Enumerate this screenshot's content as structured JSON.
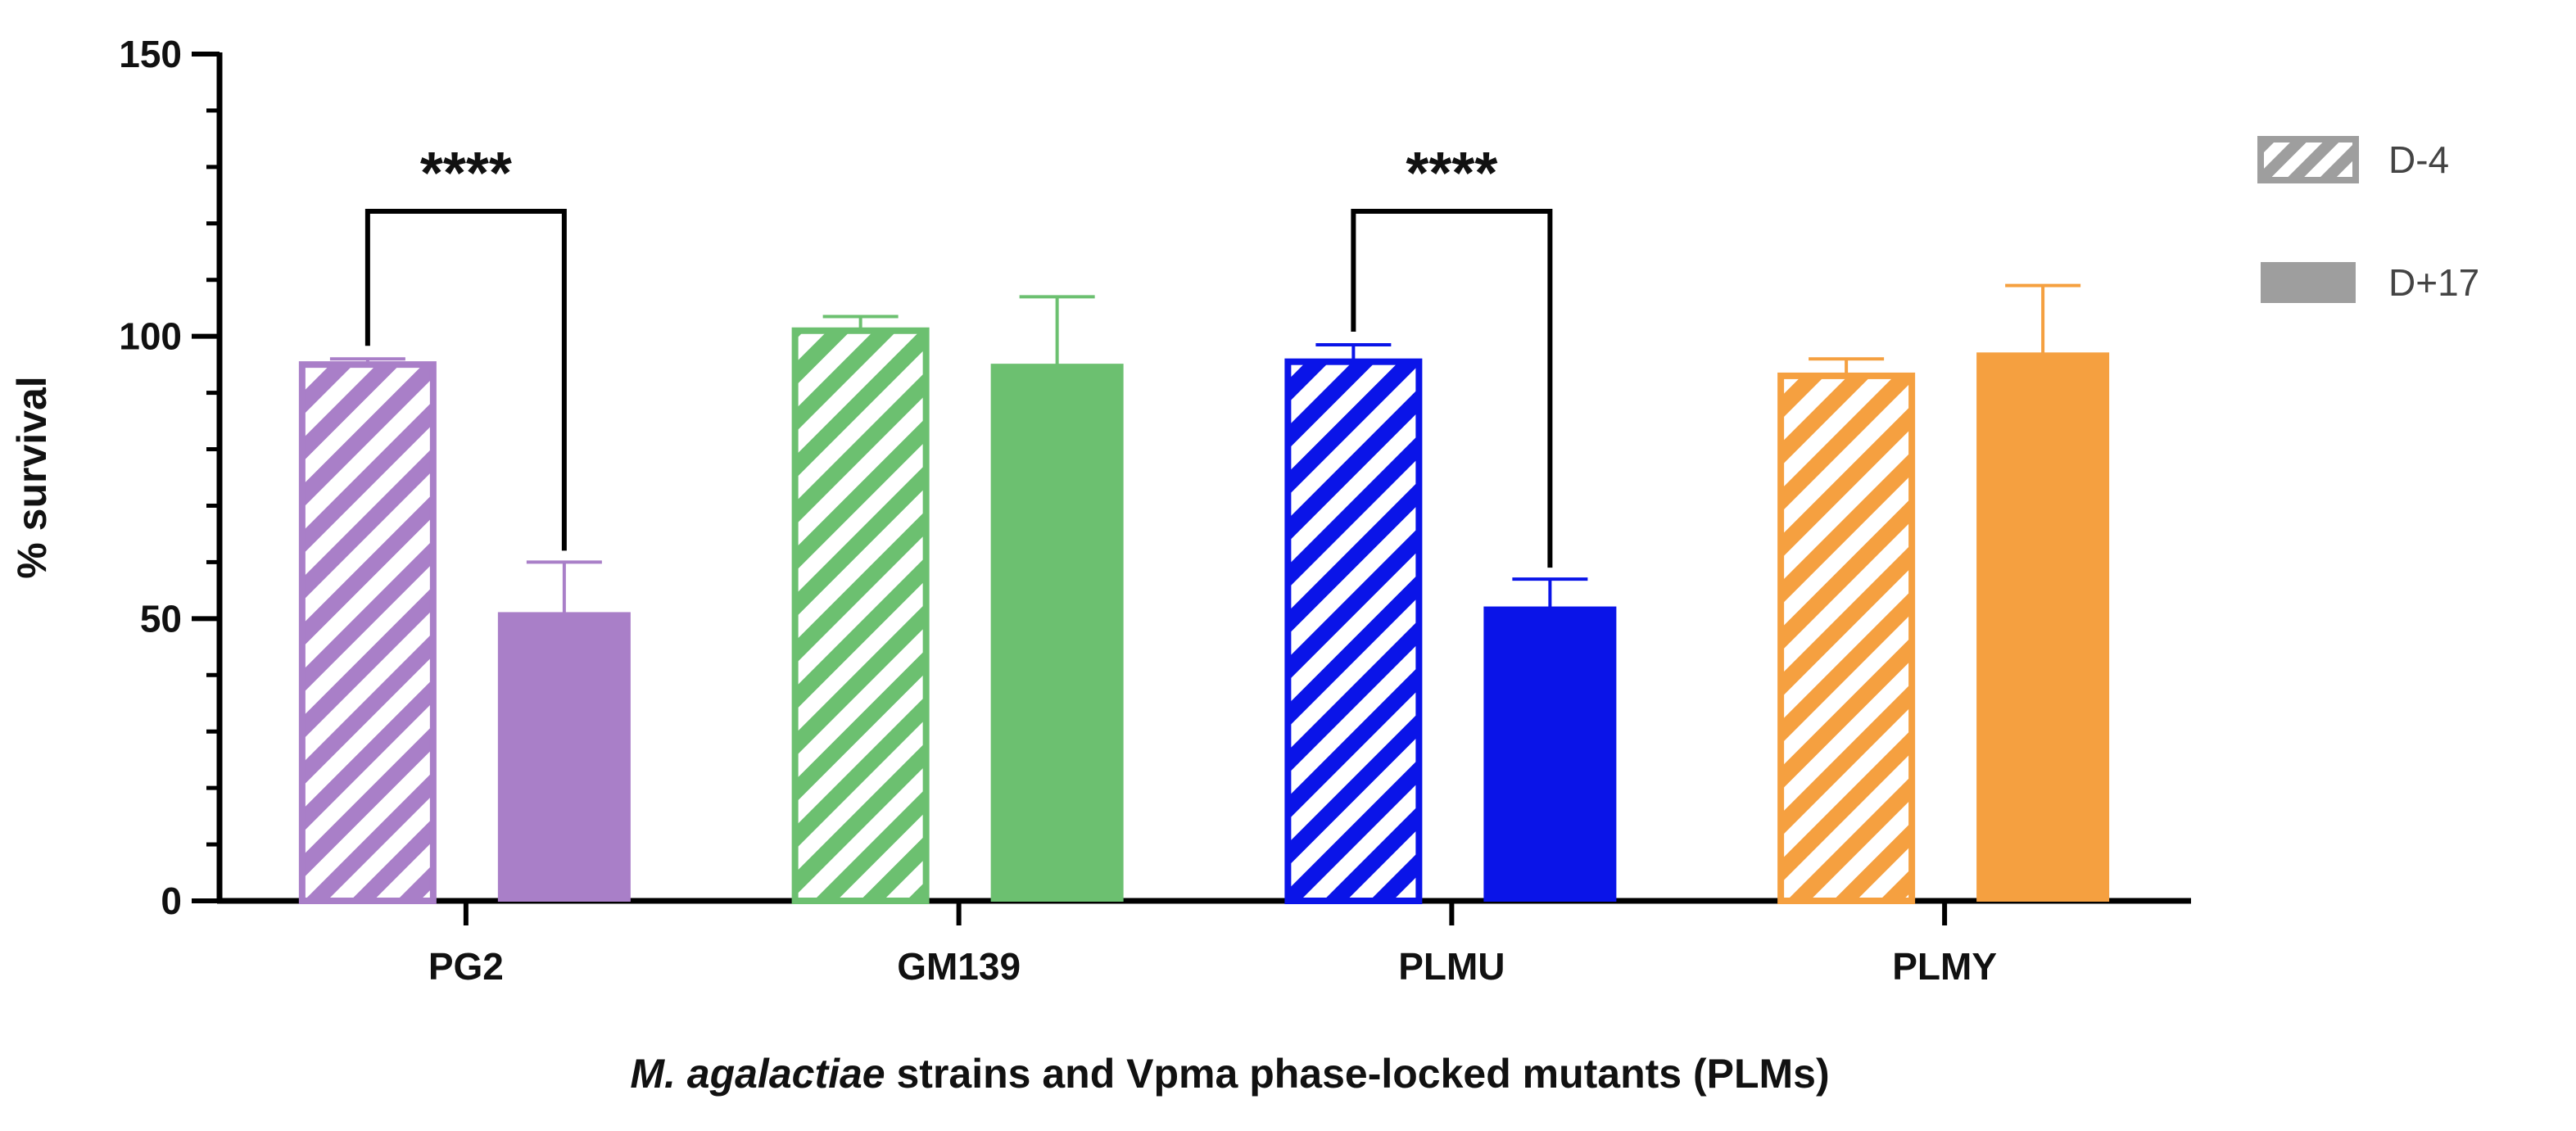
{
  "chart_data": {
    "type": "bar",
    "categories": [
      "PG2",
      "GM139",
      "PLMU",
      "PLMY"
    ],
    "series": [
      {
        "name": "D-4",
        "pattern": "hatched",
        "values": [
          95,
          101,
          95.5,
          93
        ],
        "errors": [
          1,
          2.5,
          3,
          3
        ]
      },
      {
        "name": "D+17",
        "pattern": "solid",
        "values": [
          51,
          95,
          52,
          97
        ],
        "errors": [
          9,
          12,
          5,
          12
        ]
      }
    ],
    "category_colors": [
      "#a97fc8",
      "#6cc070",
      "#0a14e8",
      "#f5a040"
    ],
    "ylabel": "% survival",
    "xlabel_italic": "M. agalactiae",
    "xlabel_rest": " strains and Vpma phase-locked mutants (PLMs)",
    "ylim": [
      0,
      150
    ],
    "yticks": [
      0,
      50,
      100,
      150
    ],
    "minor_tick_step": 10,
    "grid": false,
    "legend_position": "top-right",
    "legend_color": "#9e9e9e",
    "significance": [
      {
        "category": "PG2",
        "label": "****"
      },
      {
        "category": "PLMU",
        "label": "****"
      }
    ]
  }
}
